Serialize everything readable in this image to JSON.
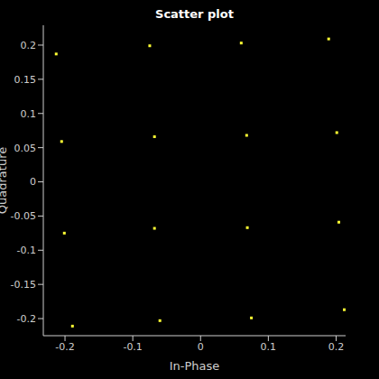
{
  "chart_data": {
    "type": "scatter",
    "title": "Scatter plot",
    "x_label": "In-Phase",
    "y_label": "Quadrature",
    "marker": "square",
    "color": "#ffff33",
    "grid": false,
    "xlim": [
      -0.232,
      0.214
    ],
    "ylim": [
      -0.225,
      0.229
    ],
    "xticks": [
      -0.2,
      -0.1,
      0,
      0.1,
      0.2
    ],
    "yticks": [
      -0.2,
      -0.15,
      -0.1,
      -0.05,
      0,
      0.05,
      0.1,
      0.15,
      0.2
    ],
    "x": [
      -0.213,
      -0.075,
      0.06,
      0.189,
      -0.205,
      -0.068,
      0.068,
      0.201,
      -0.201,
      -0.068,
      0.069,
      0.204,
      -0.189,
      -0.06,
      0.075,
      0.212
    ],
    "values": [
      0.187,
      0.199,
      0.203,
      0.209,
      0.059,
      0.066,
      0.068,
      0.072,
      -0.075,
      -0.068,
      -0.067,
      -0.059,
      -0.211,
      -0.203,
      -0.199,
      -0.187
    ]
  }
}
